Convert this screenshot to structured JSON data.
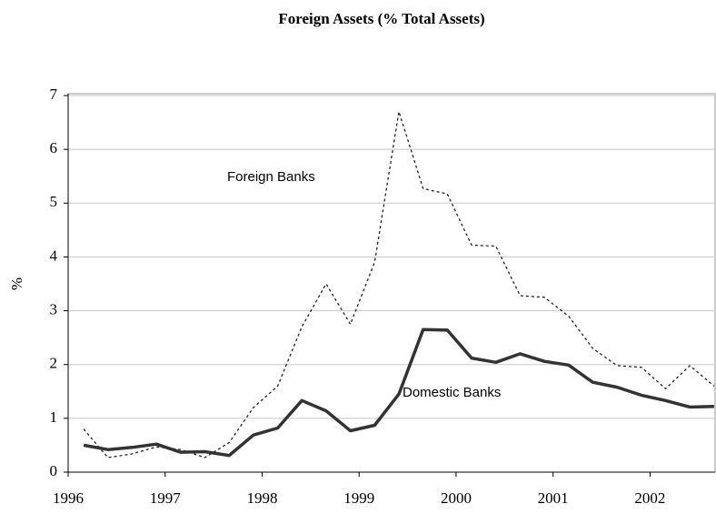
{
  "chart_data": {
    "type": "line",
    "title": "Foreign Assets (% Total Assets)",
    "y_label": "%",
    "annotations": [
      "Foreign Banks",
      "Domestic Banks"
    ],
    "x": [
      1996.16,
      1996.41,
      1996.66,
      1996.91,
      1997.16,
      1997.41,
      1997.66,
      1997.91,
      1998.16,
      1998.41,
      1998.66,
      1998.91,
      1999.16,
      1999.41,
      1999.66,
      1999.91,
      2000.16,
      2000.41,
      2000.66,
      2000.91,
      2001.16,
      2001.41,
      2001.66,
      2001.91,
      2002.16,
      2002.41,
      2002.66
    ],
    "series": [
      {
        "name": "Foreign Banks",
        "color": "#222222",
        "line_style": "dotted",
        "values": [
          0.8,
          0.27,
          0.34,
          0.47,
          0.42,
          0.27,
          0.55,
          1.2,
          1.6,
          2.7,
          3.5,
          2.75,
          3.9,
          6.7,
          5.27,
          5.17,
          4.22,
          4.2,
          3.28,
          3.25,
          2.9,
          2.3,
          1.98,
          1.95,
          1.55,
          1.98,
          1.6
        ]
      },
      {
        "name": "Domestic Banks",
        "color": "#333333",
        "line_style": "solid",
        "values": [
          0.5,
          0.42,
          0.46,
          0.52,
          0.37,
          0.38,
          0.31,
          0.69,
          0.82,
          1.33,
          1.14,
          0.77,
          0.87,
          1.45,
          2.65,
          2.64,
          2.12,
          2.04,
          2.2,
          2.06,
          1.99,
          1.67,
          1.58,
          1.43,
          1.33,
          1.21,
          1.22
        ]
      }
    ],
    "xlim": [
      1996,
      2002.68
    ],
    "xticks": [
      1996,
      1997,
      1998,
      1999,
      2000,
      2001,
      2002
    ],
    "ylim": [
      0,
      7
    ],
    "yticks": [
      0,
      1,
      2,
      3,
      4,
      5,
      6,
      7
    ],
    "grid": true
  }
}
